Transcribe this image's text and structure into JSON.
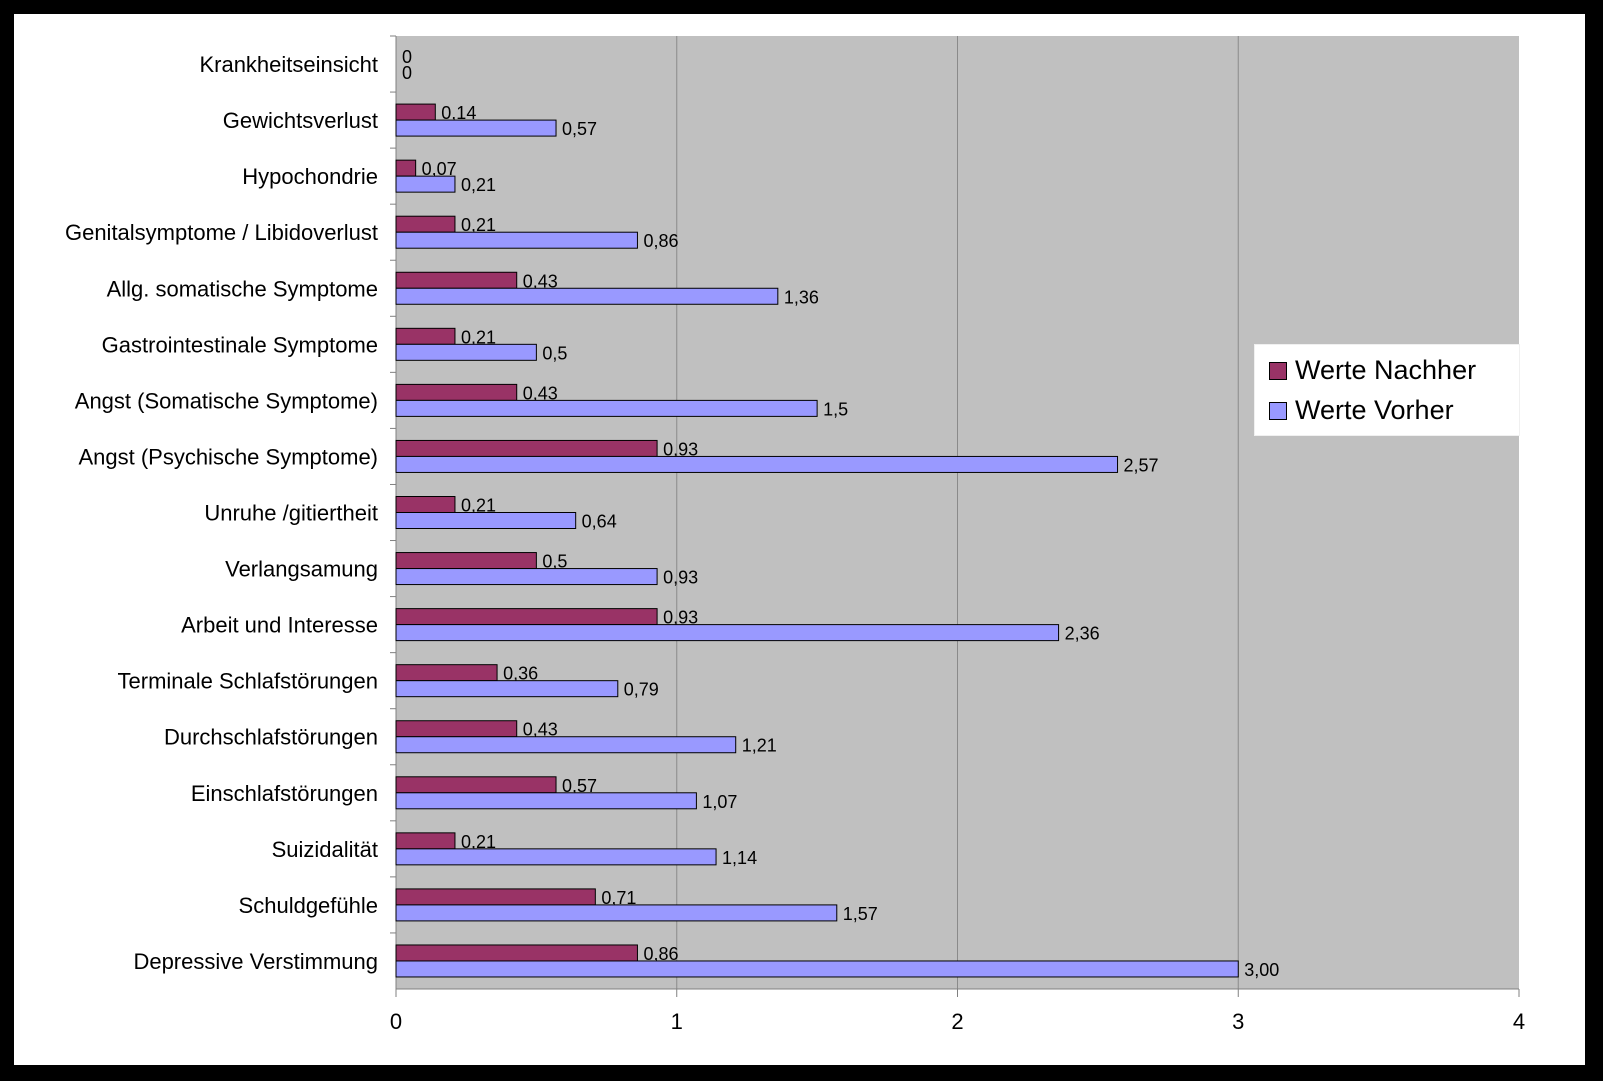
{
  "chart_data": {
    "type": "bar",
    "orientation": "horizontal",
    "title": "",
    "xlabel": "",
    "ylabel": "",
    "xlim": [
      0,
      4
    ],
    "x_ticks": [
      "0",
      "1",
      "2",
      "3",
      "4"
    ],
    "grid": true,
    "legend_position": "right",
    "categories": [
      "Krankheitseinsicht",
      "Gewichtsverlust",
      "Hypochondrie",
      "Genitalsymptome / Libidoverlust",
      "Allg. somatische Symptome",
      "Gastrointestinale Symptome",
      "Angst (Somatische Symptome)",
      "Angst (Psychische Symptome)",
      "Unruhe /gitiertheit",
      "Verlangsamung",
      "Arbeit und Interesse",
      "Terminale Schlafstörungen",
      "Durchschlafstörungen",
      "Einschlafstörungen",
      "Suizidalität",
      "Schuldgefühle",
      "Depressive Verstimmung"
    ],
    "series": [
      {
        "name": "Werte Nachher",
        "color": "#993366",
        "values": [
          0,
          0.14,
          0.07,
          0.21,
          0.43,
          0.21,
          0.43,
          0.93,
          0.21,
          0.5,
          0.93,
          0.36,
          0.43,
          0.57,
          0.21,
          0.71,
          0.86
        ],
        "labels": [
          "0",
          "0,14",
          "0,07",
          "0,21",
          "0,43",
          "0,21",
          "0,43",
          "0,93",
          "0,21",
          "0,5",
          "0,93",
          "0,36",
          "0,43",
          "0,57",
          "0,21",
          "0,71",
          "0,86"
        ]
      },
      {
        "name": "Werte Vorher",
        "color": "#9999ff",
        "values": [
          0,
          0.57,
          0.21,
          0.86,
          1.36,
          0.5,
          1.5,
          2.57,
          0.64,
          0.93,
          2.36,
          0.79,
          1.21,
          1.07,
          1.14,
          1.57,
          3.0
        ],
        "labels": [
          "0",
          "0,57",
          "0,21",
          "0,86",
          "1,36",
          "0,5",
          "1,5",
          "2,57",
          "0,64",
          "0,93",
          "2,36",
          "0,79",
          "1,21",
          "1,07",
          "1,14",
          "1,57",
          "3,00"
        ]
      }
    ]
  }
}
